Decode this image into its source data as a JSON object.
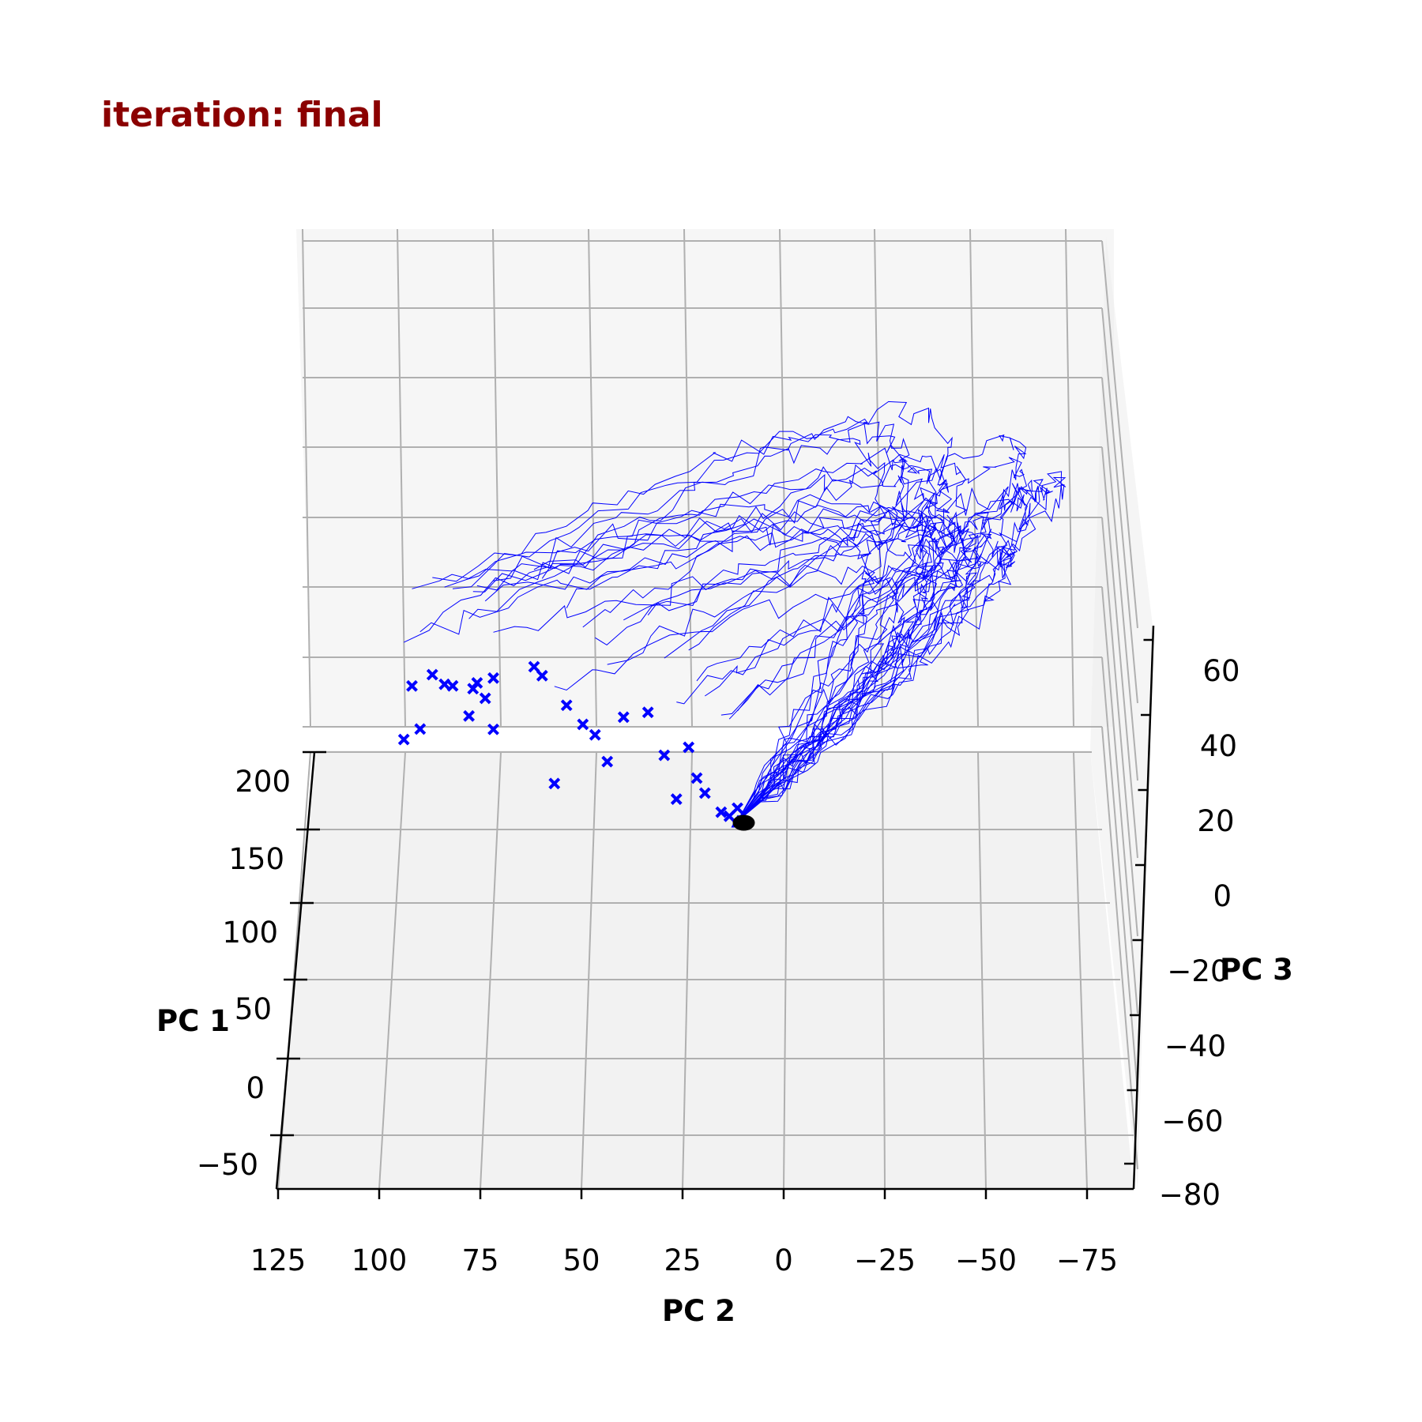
{
  "chart_data": {
    "type": "line",
    "projection": "3d",
    "title": "iteration: final",
    "title_color": "#8b0000",
    "xlabel": "PC 1",
    "ylabel": "PC 2",
    "zlabel": "PC 3",
    "xlim": [
      -50,
      215
    ],
    "ylim": [
      -85,
      125
    ],
    "zlim": [
      -80,
      75
    ],
    "x_ticks": [
      "−50",
      "0",
      "50",
      "100",
      "150",
      "200"
    ],
    "y_ticks": [
      "125",
      "100",
      "75",
      "50",
      "25",
      "0",
      "−25",
      "−50",
      "−75"
    ],
    "z_ticks": [
      "−80",
      "−60",
      "−40",
      "−20",
      "0",
      "20",
      "40",
      "60"
    ],
    "grid": true,
    "line_color": "#0000ff",
    "start_marker_color": "#000000",
    "end_marker": "x",
    "series_description": "many trajectories starting at a common origin near (PC1 0, PC2 10, PC3 5) and ending at x markers",
    "end_points": [
      [
        95,
        75,
        10
      ],
      [
        92,
        80,
        12
      ],
      [
        88,
        82,
        14
      ],
      [
        84,
        90,
        15
      ],
      [
        80,
        85,
        20
      ],
      [
        78,
        76,
        8
      ],
      [
        75,
        70,
        5
      ],
      [
        72,
        92,
        3
      ],
      [
        70,
        88,
        7
      ],
      [
        68,
        74,
        22
      ],
      [
        66,
        72,
        18
      ],
      [
        64,
        70,
        25
      ],
      [
        60,
        60,
        30
      ],
      [
        58,
        58,
        28
      ],
      [
        55,
        52,
        20
      ],
      [
        52,
        45,
        12
      ],
      [
        50,
        48,
        16
      ],
      [
        46,
        42,
        6
      ],
      [
        44,
        55,
        0
      ],
      [
        40,
        38,
        22
      ],
      [
        36,
        32,
        25
      ],
      [
        30,
        28,
        14
      ],
      [
        26,
        22,
        18
      ],
      [
        22,
        20,
        10
      ],
      [
        18,
        25,
        5
      ],
      [
        15,
        18,
        8
      ],
      [
        12,
        12,
        2
      ],
      [
        10,
        14,
        4
      ],
      [
        8,
        10,
        6
      ]
    ]
  }
}
